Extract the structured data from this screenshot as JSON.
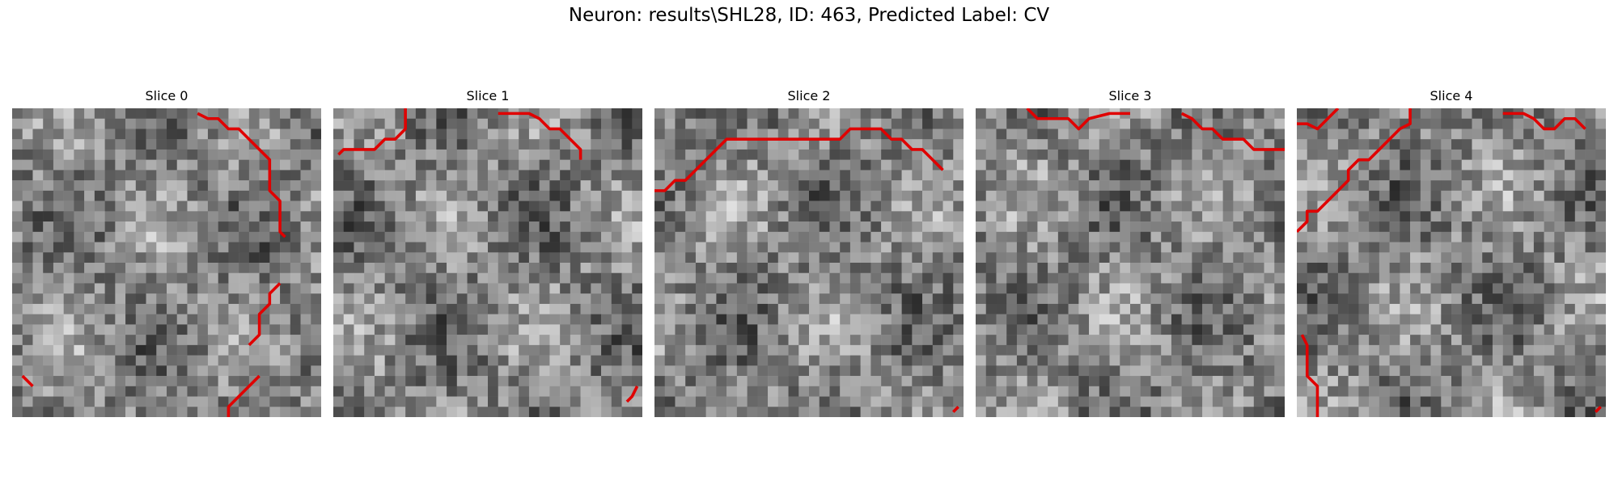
{
  "figure": {
    "title": "Neuron: results\\SHL28, ID: 463, Predicted Label: CV"
  },
  "slices": [
    {
      "label": "Slice 0"
    },
    {
      "label": "Slice 1"
    },
    {
      "label": "Slice 2"
    },
    {
      "label": "Slice 3"
    },
    {
      "label": "Slice 4"
    }
  ],
  "colors": {
    "contour": "#e00000"
  }
}
